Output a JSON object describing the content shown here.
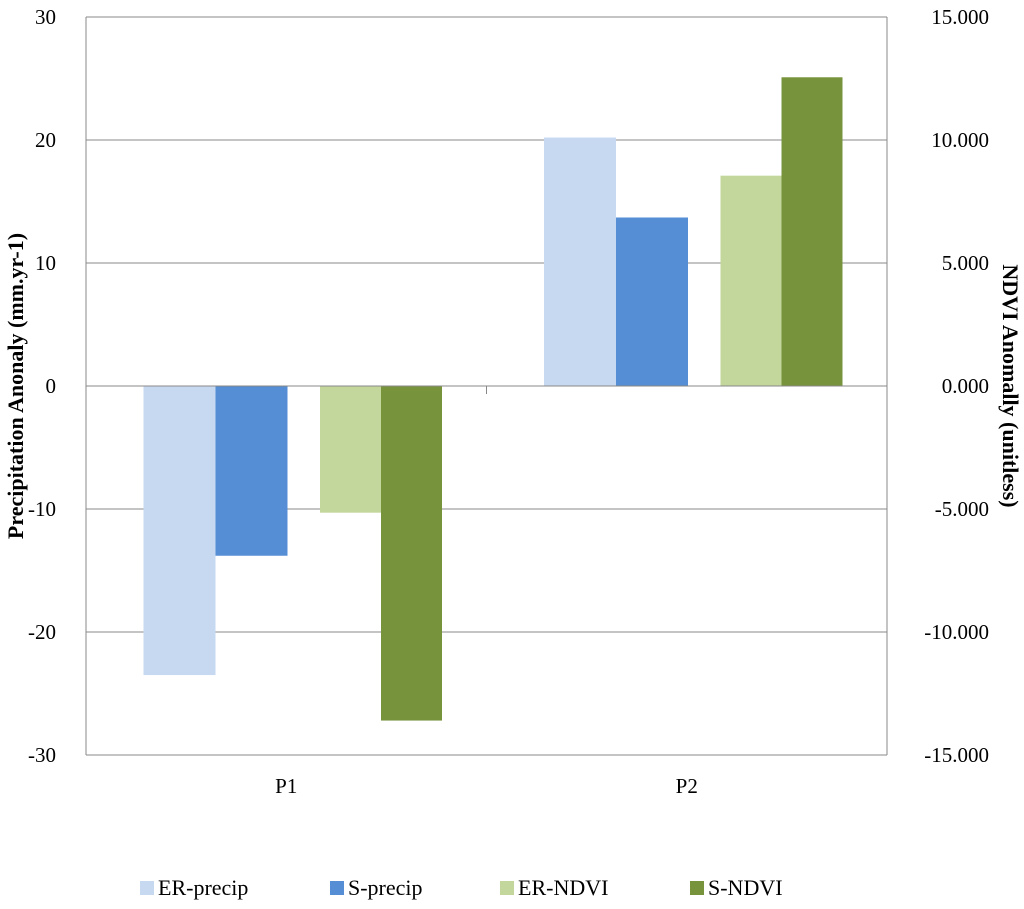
{
  "chart_data": {
    "type": "bar",
    "categories": [
      "P1",
      "P2"
    ],
    "series": [
      {
        "name": "ER-precip",
        "axis": "left",
        "color": "#C6D9F1",
        "values": [
          -23.5,
          20.2
        ]
      },
      {
        "name": "S-precip",
        "axis": "left",
        "color": "#558ED5",
        "values": [
          -13.8,
          13.7
        ]
      },
      {
        "name": "ER-NDVI",
        "axis": "right",
        "color": "#C3D69B",
        "values": [
          -5.15,
          8.55
        ]
      },
      {
        "name": "S-NDVI",
        "axis": "right",
        "color": "#77933C",
        "values": [
          -13.6,
          12.55
        ]
      }
    ],
    "ylabel": "Precipitation Anonaly (mm.yr-1)",
    "ylabel_right": "NDVI Anomally (unitless)",
    "ylim": [
      -30,
      30
    ],
    "ylim_right": [
      -15,
      15
    ],
    "yticks": [
      "30",
      "20",
      "10",
      "0",
      "-10",
      "-20",
      "-30"
    ],
    "yticks_right": [
      "15.000",
      "10.000",
      "5.000",
      "0.000",
      "-5.000",
      "-10.000",
      "-15.000"
    ],
    "grid": true,
    "legend": "bottom"
  }
}
